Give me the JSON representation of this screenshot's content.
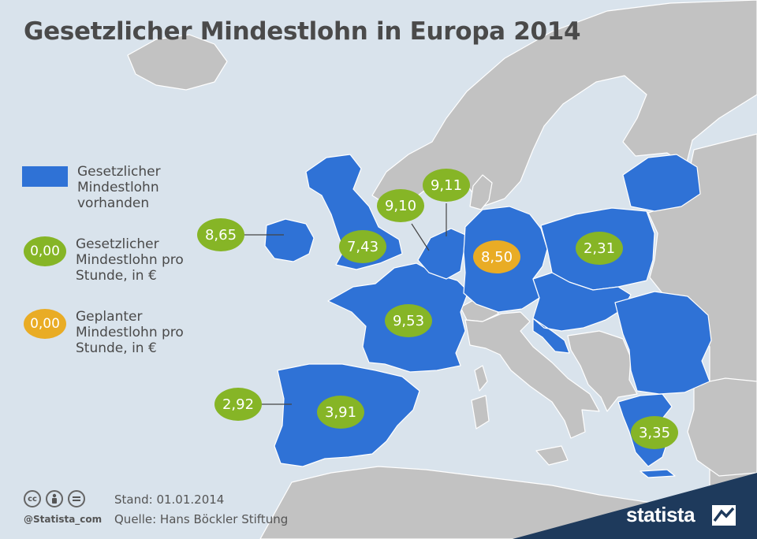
{
  "title": "Gesetzlicher Mindestlohn in Europa 2014",
  "colors": {
    "water": "#d9e3ec",
    "non_member_land": "#c2c2c2",
    "minimum_wage_country": "#2f72d6",
    "current_wage_badge": "#86b526",
    "planned_wage_badge": "#e9ac25",
    "brand_bar": "#1e3a5c"
  },
  "legend": [
    {
      "kind": "swatch",
      "sample": "",
      "label": "Gesetzlicher Mindestlohn vorhanden"
    },
    {
      "kind": "current",
      "sample": "0,00",
      "label": "Gesetzlicher Mindestlohn pro Stunde, in €"
    },
    {
      "kind": "planned",
      "sample": "0,00",
      "label": "Geplanter Mindestlohn pro Stunde, in €"
    }
  ],
  "wage_badges": [
    {
      "country": "Irland",
      "value": "8,65",
      "kind": "current"
    },
    {
      "country": "Vereinigtes Königreich",
      "value": "7,43",
      "kind": "current"
    },
    {
      "country": "Belgien",
      "value": "9,10",
      "kind": "current"
    },
    {
      "country": "Niederlande",
      "value": "9,11",
      "kind": "current"
    },
    {
      "country": "Deutschland",
      "value": "8,50",
      "kind": "planned"
    },
    {
      "country": "Polen",
      "value": "2,31",
      "kind": "current"
    },
    {
      "country": "Frankreich",
      "value": "9,53",
      "kind": "current"
    },
    {
      "country": "Portugal",
      "value": "2,92",
      "kind": "current"
    },
    {
      "country": "Spanien",
      "value": "3,91",
      "kind": "current"
    },
    {
      "country": "Griechenland",
      "value": "3,35",
      "kind": "current"
    }
  ],
  "footer": {
    "stand": "Stand: 01.01.2014",
    "source": "Quelle: Hans Böckler Stiftung",
    "handle": "@Statista_com",
    "brand": "statista",
    "license_icons": [
      "cc-icon",
      "attribution-icon",
      "no-derivatives-icon"
    ]
  }
}
